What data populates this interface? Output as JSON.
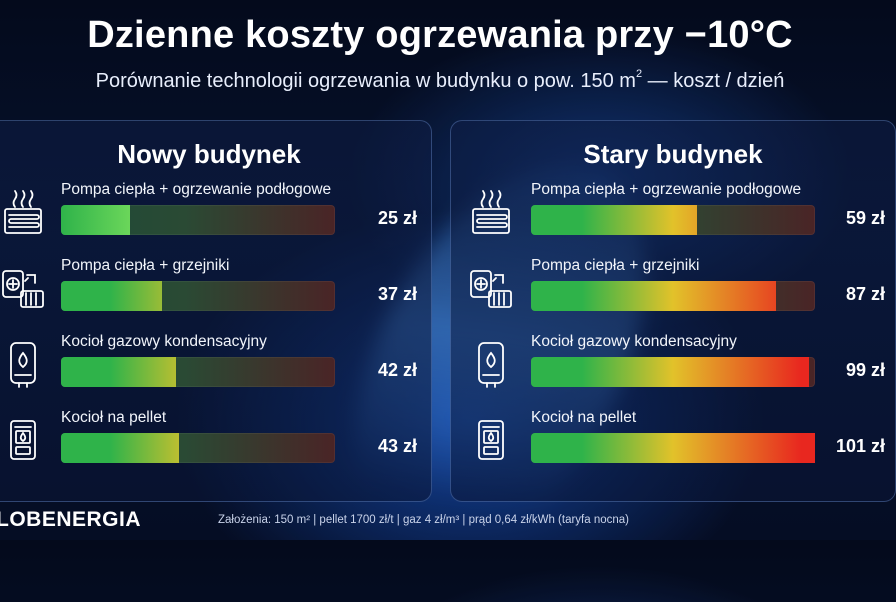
{
  "header": {
    "title": "Dzienne koszty ogrzewania przy −10°C",
    "subtitle_main": "Porównanie technologii ogrzewania w budynku o pow. 150 m",
    "subtitle_sup": "2",
    "subtitle_end": " — koszt / dzień"
  },
  "chart_data": [
    {
      "type": "bar",
      "title": "Nowy budynek",
      "categories": [
        "Pompa ciepła + ogrzewanie podłogowe",
        "Pompa ciepła + grzejniki",
        "Kocioł gazowy kondensacyjny",
        "Kocioł na pellet"
      ],
      "values": [
        25,
        37,
        42,
        43
      ],
      "value_labels": [
        "25 zł",
        "37 zł",
        "42 zł",
        "43 zł"
      ],
      "icons": [
        "underfloor-heat-pump-icon",
        "heat-pump-radiator-icon",
        "gas-boiler-icon",
        "pellet-boiler-icon"
      ],
      "xlim": [
        0,
        100
      ]
    },
    {
      "type": "bar",
      "title": "Stary budynek",
      "categories": [
        "Pompa ciepła + ogrzewanie podłogowe",
        "Pompa ciepła + grzejniki",
        "Kocioł gazowy kondensacyjny",
        "Kocioł na pellet"
      ],
      "values": [
        59,
        87,
        99,
        101
      ],
      "value_labels": [
        "59 zł",
        "87 zł",
        "99 zł",
        "101 zł"
      ],
      "icons": [
        "underfloor-heat-pump-icon",
        "heat-pump-radiator-icon",
        "gas-boiler-icon",
        "pellet-boiler-icon"
      ],
      "xlim": [
        0,
        101
      ]
    }
  ],
  "colors": {
    "green": "#2fb34a",
    "yellow": "#e2c22a",
    "red": "#e8271f"
  },
  "footer": {
    "logo": "LOBENERGIA",
    "note": "Założenia: 150 m² | pellet 1700 zł/t | gaz 4 zł/m³ | prąd 0,64 zł/kWh (taryfa nocna)"
  }
}
